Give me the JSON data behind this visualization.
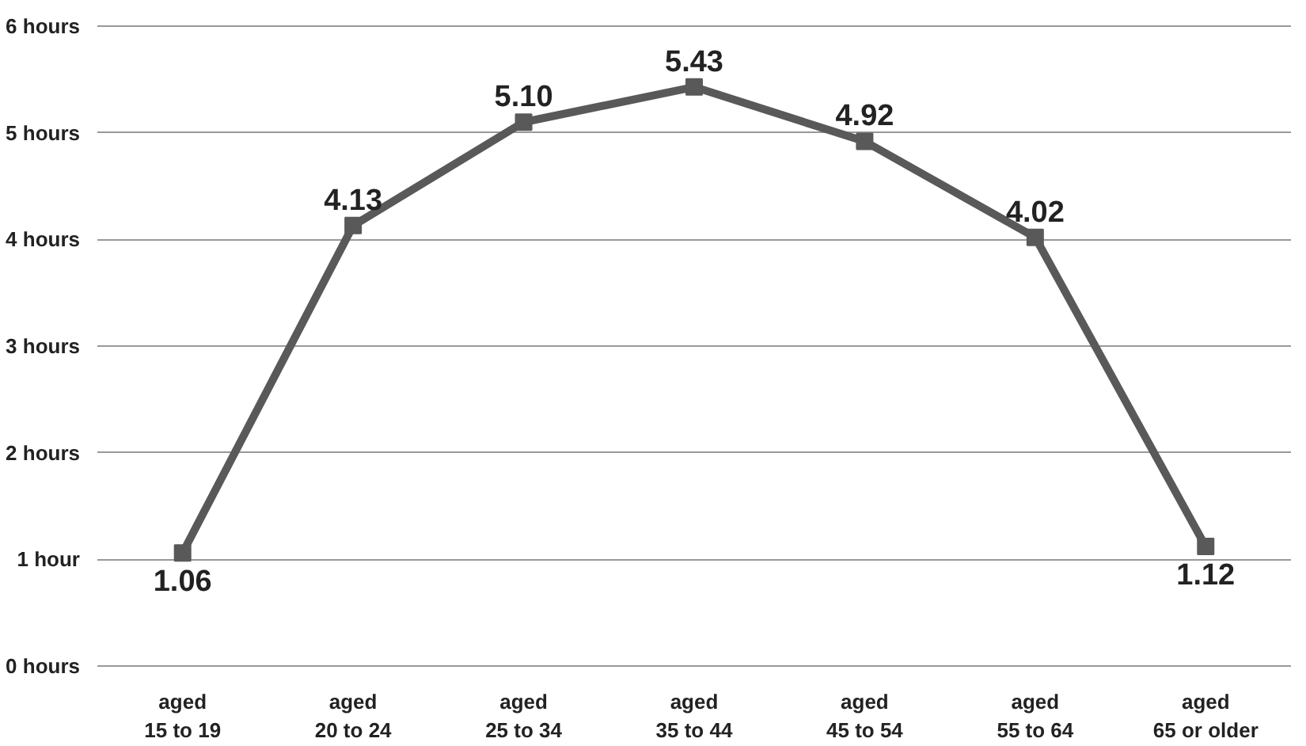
{
  "chart_data": {
    "type": "line",
    "categories": [
      "aged\n15 to 19",
      "aged\n20 to 24",
      "aged\n25 to 34",
      "aged\n35 to 44",
      "aged\n45 to 54",
      "aged\n55 to 64",
      "aged\n65 or older"
    ],
    "series": [
      {
        "color": "#595959",
        "values": [
          1.06,
          4.13,
          5.1,
          5.43,
          4.92,
          4.02,
          1.12
        ],
        "value_labels": [
          "1.06",
          "4.13",
          "5.10",
          "5.43",
          "4.92",
          "4.02",
          "1.12"
        ]
      }
    ],
    "ylim": [
      0,
      6
    ],
    "yticks": [
      {
        "value": 0,
        "label": "0 hours"
      },
      {
        "value": 1,
        "label": "1 hour"
      },
      {
        "value": 2,
        "label": "2 hours"
      },
      {
        "value": 3,
        "label": "3 hours"
      },
      {
        "value": 4,
        "label": "4 hours"
      },
      {
        "value": 5,
        "label": "5 hours"
      },
      {
        "value": 6,
        "label": "6 hours"
      }
    ],
    "grid": "y",
    "marker": "square",
    "line_style": "solid"
  }
}
